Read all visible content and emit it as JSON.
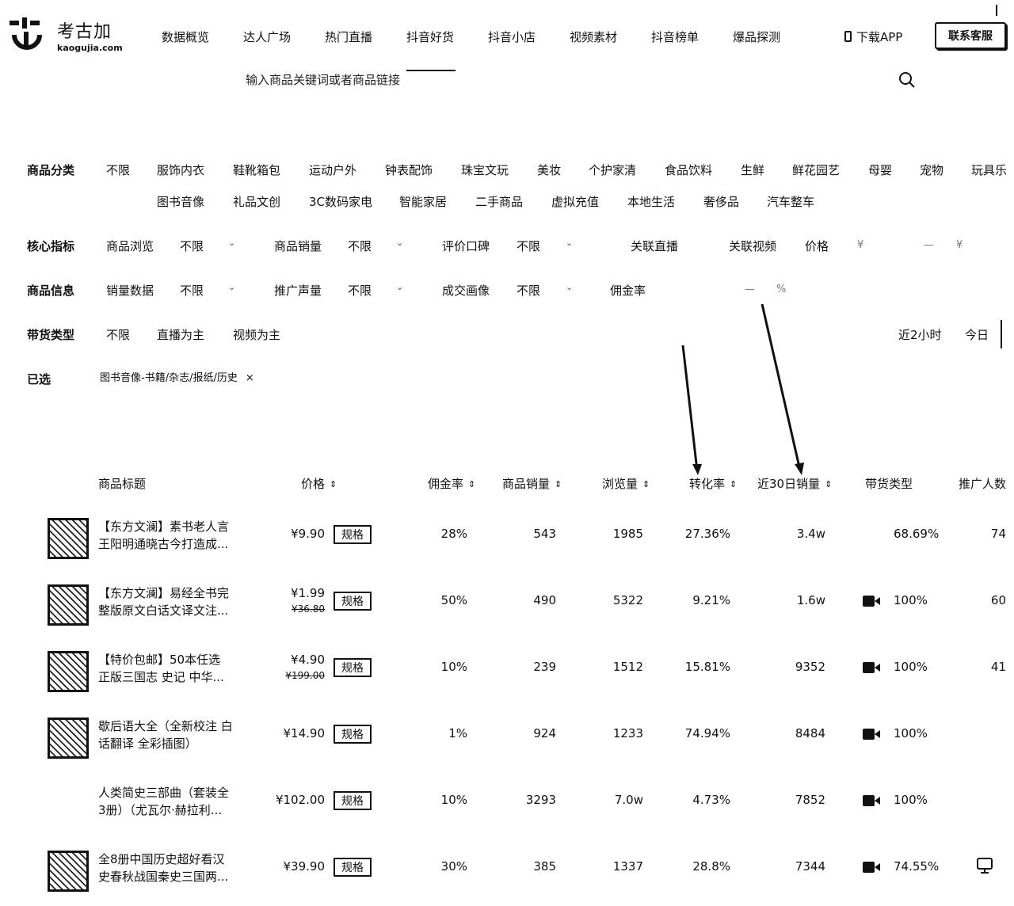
{
  "brand": {
    "name_cn": "考古加",
    "domain": "kaogujia.com"
  },
  "nav": [
    "数据概览",
    "达人广场",
    "热门直播",
    "抖音好货",
    "抖音小店",
    "视频素材",
    "抖音榜单",
    "爆品探测"
  ],
  "header": {
    "download": "下载APP",
    "contact": "联系客服"
  },
  "search": {
    "placeholder": "输入商品关键词或者商品链接"
  },
  "category": {
    "label": "商品分类",
    "row1": [
      "不限",
      "服饰内衣",
      "鞋靴箱包",
      "运动户外",
      "钟表配饰",
      "珠宝文玩",
      "美妆",
      "个护家清",
      "食品饮料",
      "生鲜",
      "鲜花园艺",
      "母婴",
      "宠物",
      "玩具乐"
    ],
    "row2": [
      "图书音像",
      "礼品文创",
      "3C数码家电",
      "智能家居",
      "二手商品",
      "虚拟充值",
      "本地生活",
      "奢侈品",
      "汽车整车"
    ]
  },
  "core": {
    "label": "核心指标",
    "browse": "商品浏览",
    "browse_val": "不限",
    "sales": "商品销量",
    "sales_val": "不限",
    "review": "评价口碑",
    "review_val": "不限",
    "live": "关联直播",
    "video": "关联视频",
    "price": "价格",
    "currency": "¥",
    "dash": "—"
  },
  "info": {
    "label": "商品信息",
    "salesdata": "销量数据",
    "salesdata_val": "不限",
    "promo": "推广声量",
    "promo_val": "不限",
    "buyer": "成交画像",
    "buyer_val": "不限",
    "commission": "佣金率",
    "dash": "—",
    "pct": "%"
  },
  "carry": {
    "label": "带货类型",
    "options": [
      "不限",
      "直播为主",
      "视频为主"
    ],
    "time": [
      "近2小时",
      "今日"
    ]
  },
  "selected": {
    "label": "已选",
    "tag": "图书音像-书籍/杂志/报纸/历史",
    "close": "×"
  },
  "table": {
    "headers": {
      "title": "商品标题",
      "price": "价格",
      "commission": "佣金率",
      "sales": "商品销量",
      "views": "浏览量",
      "conversion": "转化率",
      "sales30": "近30日销量",
      "type": "带货类型",
      "promoters": "推广人数"
    },
    "spec_label": "规格",
    "rows": [
      {
        "title1": "【东方文澜】素书老人言",
        "title2": "王阳明通晓古今打造成...",
        "price": "¥9.90",
        "old": "",
        "commission": "28%",
        "sales": "543",
        "views": "1985",
        "conversion": "27.36%",
        "sales30": "3.4w",
        "type_pct": "68.69%",
        "promoters": "74"
      },
      {
        "title1": "【东方文澜】易经全书完",
        "title2": "整版原文白话文译文注...",
        "price": "¥1.99",
        "old": "¥36.80",
        "commission": "50%",
        "sales": "490",
        "views": "5322",
        "conversion": "9.21%",
        "sales30": "1.6w",
        "type_pct": "100%",
        "promoters": "60"
      },
      {
        "title1": "【特价包邮】50本任选",
        "title2": "正版三国志 史记 中华...",
        "price": "¥4.90",
        "old": "¥199.00",
        "commission": "10%",
        "sales": "239",
        "views": "1512",
        "conversion": "15.81%",
        "sales30": "9352",
        "type_pct": "100%",
        "promoters": "41"
      },
      {
        "title1": "歇后语大全（全新校注 白",
        "title2": "话翻译 全彩插图）",
        "price": "¥14.90",
        "old": "",
        "commission": "1%",
        "sales": "924",
        "views": "1233",
        "conversion": "74.94%",
        "sales30": "8484",
        "type_pct": "100%",
        "promoters": ""
      },
      {
        "title1": "人类简史三部曲（套装全",
        "title2": "3册）（尤瓦尔·赫拉利...",
        "price": "¥102.00",
        "old": "",
        "commission": "10%",
        "sales": "3293",
        "views": "7.0w",
        "conversion": "4.73%",
        "sales30": "7852",
        "type_pct": "100%",
        "promoters": ""
      },
      {
        "title1": "全8册中国历史超好看汉",
        "title2": "史春秋战国秦史三国两...",
        "price": "¥39.90",
        "old": "",
        "commission": "30%",
        "sales": "385",
        "views": "1337",
        "conversion": "28.8%",
        "sales30": "7344",
        "type_pct": "74.55%",
        "promoters": ""
      }
    ]
  }
}
